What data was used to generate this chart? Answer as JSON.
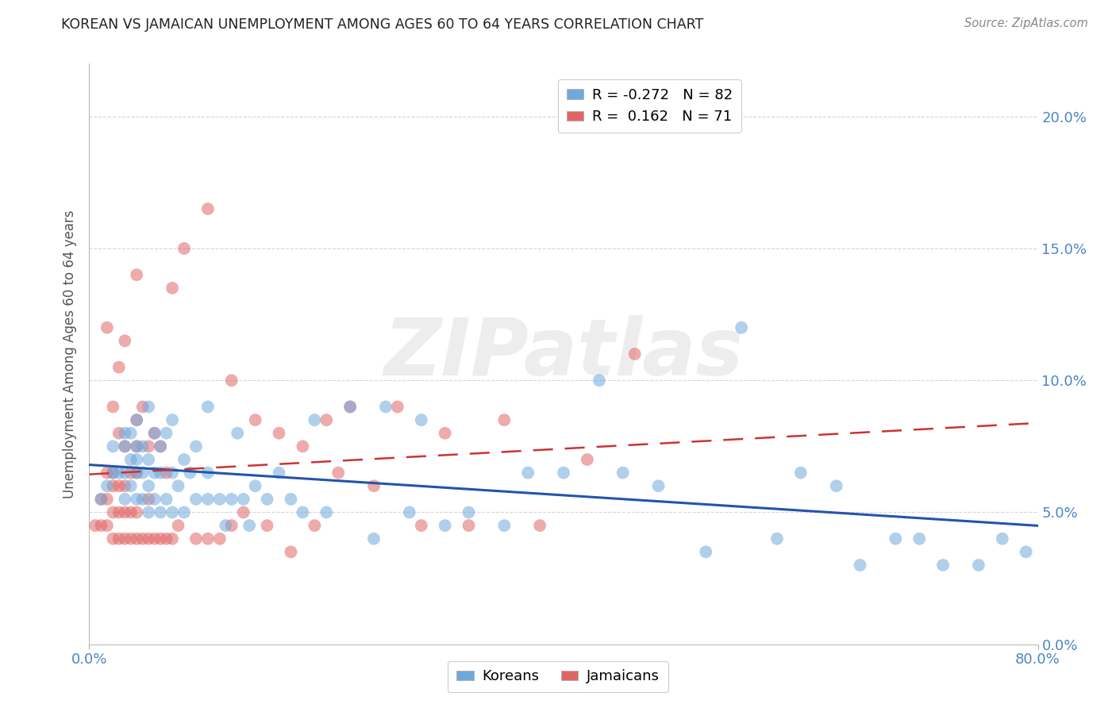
{
  "title": "KOREAN VS JAMAICAN UNEMPLOYMENT AMONG AGES 60 TO 64 YEARS CORRELATION CHART",
  "source": "Source: ZipAtlas.com",
  "ylabel": "Unemployment Among Ages 60 to 64 years",
  "xlim": [
    0.0,
    0.8
  ],
  "ylim": [
    0.0,
    0.22
  ],
  "ytick_vals": [
    0.0,
    0.05,
    0.1,
    0.15,
    0.2
  ],
  "ytick_labels": [
    "0.0%",
    "5.0%",
    "10.0%",
    "15.0%",
    "20.0%"
  ],
  "xtick_vals": [
    0.0,
    0.8
  ],
  "xtick_labels": [
    "0.0%",
    "80.0%"
  ],
  "korean_color": "#6fa8dc",
  "jamaican_color": "#e06666",
  "korean_R": -0.272,
  "korean_N": 82,
  "jamaican_R": 0.162,
  "jamaican_N": 71,
  "legend_label_korean": "Koreans",
  "legend_label_jamaican": "Jamaicans",
  "watermark": "ZIPatlas",
  "background_color": "#ffffff",
  "grid_color": "#cccccc",
  "axis_label_color": "#4a86c8",
  "title_color": "#222222",
  "korean_x": [
    0.01,
    0.015,
    0.02,
    0.02,
    0.025,
    0.03,
    0.03,
    0.03,
    0.03,
    0.035,
    0.035,
    0.035,
    0.04,
    0.04,
    0.04,
    0.04,
    0.04,
    0.045,
    0.045,
    0.045,
    0.05,
    0.05,
    0.05,
    0.05,
    0.055,
    0.055,
    0.055,
    0.06,
    0.06,
    0.06,
    0.065,
    0.065,
    0.07,
    0.07,
    0.07,
    0.075,
    0.08,
    0.08,
    0.085,
    0.09,
    0.09,
    0.1,
    0.1,
    0.1,
    0.11,
    0.115,
    0.12,
    0.125,
    0.13,
    0.135,
    0.14,
    0.15,
    0.16,
    0.17,
    0.18,
    0.19,
    0.2,
    0.22,
    0.24,
    0.25,
    0.27,
    0.28,
    0.3,
    0.32,
    0.35,
    0.37,
    0.4,
    0.43,
    0.45,
    0.48,
    0.52,
    0.55,
    0.58,
    0.6,
    0.63,
    0.65,
    0.68,
    0.7,
    0.72,
    0.75,
    0.77,
    0.79
  ],
  "korean_y": [
    0.055,
    0.06,
    0.065,
    0.075,
    0.065,
    0.055,
    0.065,
    0.075,
    0.08,
    0.06,
    0.07,
    0.08,
    0.055,
    0.065,
    0.07,
    0.075,
    0.085,
    0.055,
    0.065,
    0.075,
    0.05,
    0.06,
    0.07,
    0.09,
    0.055,
    0.065,
    0.08,
    0.05,
    0.065,
    0.075,
    0.055,
    0.08,
    0.05,
    0.065,
    0.085,
    0.06,
    0.05,
    0.07,
    0.065,
    0.055,
    0.075,
    0.055,
    0.065,
    0.09,
    0.055,
    0.045,
    0.055,
    0.08,
    0.055,
    0.045,
    0.06,
    0.055,
    0.065,
    0.055,
    0.05,
    0.085,
    0.05,
    0.09,
    0.04,
    0.09,
    0.05,
    0.085,
    0.045,
    0.05,
    0.045,
    0.065,
    0.065,
    0.1,
    0.065,
    0.06,
    0.035,
    0.12,
    0.04,
    0.065,
    0.06,
    0.03,
    0.04,
    0.04,
    0.03,
    0.03,
    0.04,
    0.035
  ],
  "jamaican_x": [
    0.005,
    0.01,
    0.01,
    0.015,
    0.015,
    0.015,
    0.015,
    0.02,
    0.02,
    0.02,
    0.02,
    0.02,
    0.025,
    0.025,
    0.025,
    0.025,
    0.025,
    0.03,
    0.03,
    0.03,
    0.03,
    0.03,
    0.035,
    0.035,
    0.035,
    0.04,
    0.04,
    0.04,
    0.04,
    0.04,
    0.04,
    0.045,
    0.045,
    0.05,
    0.05,
    0.05,
    0.055,
    0.055,
    0.06,
    0.06,
    0.065,
    0.065,
    0.07,
    0.07,
    0.075,
    0.08,
    0.09,
    0.1,
    0.1,
    0.11,
    0.12,
    0.12,
    0.13,
    0.14,
    0.15,
    0.16,
    0.17,
    0.18,
    0.19,
    0.2,
    0.21,
    0.22,
    0.24,
    0.26,
    0.28,
    0.3,
    0.32,
    0.35,
    0.38,
    0.42,
    0.46
  ],
  "jamaican_y": [
    0.045,
    0.045,
    0.055,
    0.045,
    0.055,
    0.065,
    0.12,
    0.04,
    0.05,
    0.06,
    0.065,
    0.09,
    0.04,
    0.05,
    0.06,
    0.08,
    0.105,
    0.04,
    0.05,
    0.06,
    0.075,
    0.115,
    0.04,
    0.05,
    0.065,
    0.04,
    0.05,
    0.065,
    0.075,
    0.085,
    0.14,
    0.04,
    0.09,
    0.04,
    0.055,
    0.075,
    0.04,
    0.08,
    0.04,
    0.075,
    0.04,
    0.065,
    0.04,
    0.135,
    0.045,
    0.15,
    0.04,
    0.04,
    0.165,
    0.04,
    0.045,
    0.1,
    0.05,
    0.085,
    0.045,
    0.08,
    0.035,
    0.075,
    0.045,
    0.085,
    0.065,
    0.09,
    0.06,
    0.09,
    0.045,
    0.08,
    0.045,
    0.085,
    0.045,
    0.07,
    0.11
  ]
}
